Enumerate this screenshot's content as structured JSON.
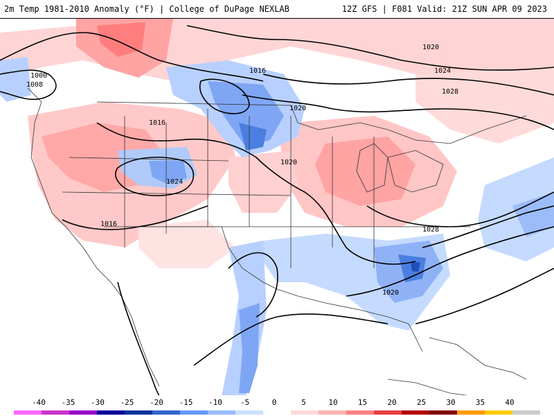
{
  "header": {
    "title": "2m Temp 1981-2010 Anomaly (°F) | College of DuPage NEXLAB",
    "run_info": "12Z GFS | F081 Valid: 21Z SUN APR 09 2023"
  },
  "legend": {
    "ticks": [
      "-40",
      "-35",
      "-30",
      "-25",
      "-20",
      "-15",
      "-10",
      "-5",
      "0",
      "5",
      "10",
      "15",
      "20",
      "25",
      "30",
      "35",
      "40"
    ],
    "colors": [
      "#ff66ff",
      "#cc33cc",
      "#9900cc",
      "#000099",
      "#003399",
      "#3366cc",
      "#6699ff",
      "#99bbff",
      "#cce0ff",
      "#ffffff",
      "#ffd9d9",
      "#ffb3b3",
      "#ff8080",
      "#e64040",
      "#b30000",
      "#800000",
      "#ff9900",
      "#ffcc00",
      "#cccccc"
    ]
  },
  "map": {
    "contour_labels": [
      "1000",
      "1008",
      "1016",
      "1016",
      "1020",
      "1020",
      "1024",
      "1028",
      "1020",
      "1024",
      "1016",
      "1028",
      "1020"
    ]
  }
}
